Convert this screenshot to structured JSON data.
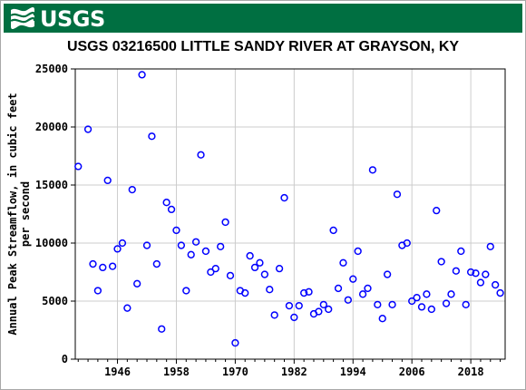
{
  "header": {
    "logo_text": "USGS",
    "title": "USGS 03216500 LITTLE SANDY RIVER AT GRAYSON, KY"
  },
  "colors": {
    "banner": "#006f41",
    "marker": "#0000ff",
    "grid": "#cccccc"
  },
  "chart_data": {
    "type": "scatter",
    "title": "USGS 03216500 LITTLE SANDY RIVER AT GRAYSON, KY",
    "xlabel": "",
    "ylabel_lines": [
      "Annual Peak Streamflow, in cubic feet",
      "per second"
    ],
    "xlim": [
      1937.4,
      2025.0
    ],
    "ylim": [
      0,
      25000
    ],
    "x_ticks": [
      1946,
      1958,
      1970,
      1982,
      1994,
      2006,
      2018
    ],
    "y_ticks": [
      0,
      5000,
      10000,
      15000,
      20000,
      25000
    ],
    "grid": true,
    "series": [
      {
        "points": [
          [
            1938,
            16600
          ],
          [
            1940,
            19800
          ],
          [
            1941,
            8200
          ],
          [
            1942,
            5900
          ],
          [
            1943,
            7900
          ],
          [
            1944,
            15400
          ],
          [
            1945,
            8000
          ],
          [
            1946,
            9500
          ],
          [
            1947,
            10000
          ],
          [
            1948,
            4400
          ],
          [
            1949,
            14600
          ],
          [
            1950,
            6500
          ],
          [
            1951,
            24500
          ],
          [
            1952,
            9800
          ],
          [
            1953,
            19200
          ],
          [
            1954,
            8200
          ],
          [
            1955,
            2600
          ],
          [
            1956,
            13500
          ],
          [
            1957,
            12900
          ],
          [
            1958,
            11100
          ],
          [
            1959,
            9800
          ],
          [
            1960,
            5900
          ],
          [
            1961,
            9000
          ],
          [
            1962,
            10100
          ],
          [
            1963,
            17600
          ],
          [
            1964,
            9300
          ],
          [
            1965,
            7500
          ],
          [
            1966,
            7800
          ],
          [
            1967,
            9700
          ],
          [
            1968,
            11800
          ],
          [
            1969,
            7200
          ],
          [
            1970,
            1400
          ],
          [
            1971,
            5900
          ],
          [
            1972,
            5700
          ],
          [
            1973,
            8900
          ],
          [
            1974,
            7900
          ],
          [
            1975,
            8300
          ],
          [
            1976,
            7300
          ],
          [
            1977,
            6000
          ],
          [
            1978,
            3800
          ],
          [
            1979,
            7800
          ],
          [
            1980,
            13900
          ],
          [
            1981,
            4600
          ],
          [
            1982,
            3600
          ],
          [
            1983,
            4600
          ],
          [
            1984,
            5700
          ],
          [
            1985,
            5800
          ],
          [
            1986,
            3900
          ],
          [
            1987,
            4100
          ],
          [
            1988,
            4700
          ],
          [
            1989,
            4300
          ],
          [
            1990,
            11100
          ],
          [
            1991,
            6100
          ],
          [
            1992,
            8300
          ],
          [
            1993,
            5100
          ],
          [
            1994,
            6900
          ],
          [
            1995,
            9300
          ],
          [
            1996,
            5600
          ],
          [
            1997,
            6100
          ],
          [
            1998,
            16300
          ],
          [
            1999,
            4700
          ],
          [
            2000,
            3500
          ],
          [
            2001,
            7300
          ],
          [
            2002,
            4700
          ],
          [
            2003,
            14200
          ],
          [
            2004,
            9800
          ],
          [
            2005,
            10000
          ],
          [
            2006,
            5000
          ],
          [
            2007,
            5300
          ],
          [
            2008,
            4500
          ],
          [
            2009,
            5600
          ],
          [
            2010,
            4300
          ],
          [
            2011,
            12800
          ],
          [
            2012,
            8400
          ],
          [
            2013,
            4800
          ],
          [
            2014,
            5600
          ],
          [
            2015,
            7600
          ],
          [
            2016,
            9300
          ],
          [
            2017,
            4700
          ],
          [
            2018,
            7500
          ],
          [
            2019,
            7400
          ],
          [
            2020,
            6600
          ],
          [
            2021,
            7300
          ],
          [
            2022,
            9700
          ],
          [
            2023,
            6400
          ],
          [
            2024,
            5700
          ]
        ]
      }
    ]
  }
}
